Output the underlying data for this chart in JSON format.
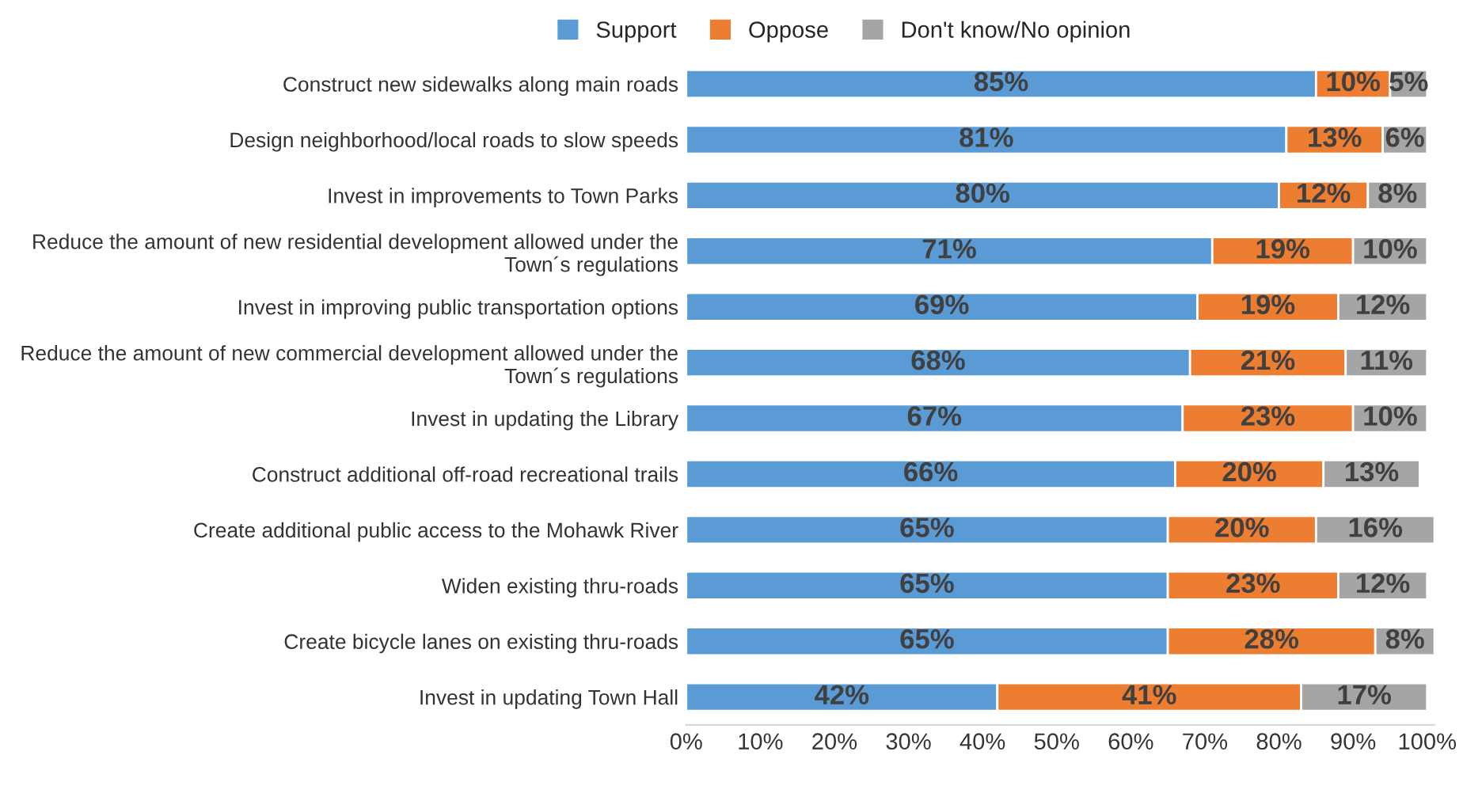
{
  "chart_data": {
    "type": "bar",
    "orientation": "horizontal",
    "stacked": true,
    "legend": "top",
    "categories": [
      "Construct new sidewalks along main roads",
      "Design neighborhood/local roads to slow speeds",
      "Invest in improvements to Town Parks",
      "Reduce the amount of new residential development allowed under the Town´s regulations",
      "Invest in improving public transportation options",
      "Reduce the amount of new commercial development allowed under the Town´s regulations",
      "Invest in updating the Library",
      "Construct additional off-road recreational trails",
      "Create additional public access to the Mohawk River",
      "Widen existing thru-roads",
      "Create bicycle lanes on existing thru-roads",
      "Invest in updating Town Hall"
    ],
    "series": [
      {
        "name": "Support",
        "color": "#5b9bd5",
        "values": [
          85,
          81,
          80,
          71,
          69,
          68,
          67,
          66,
          65,
          65,
          65,
          42
        ],
        "value_labels": [
          "85%",
          "81%",
          "80%",
          "71%",
          "69%",
          "68%",
          "67%",
          "66%",
          "65%",
          "65%",
          "65%",
          "42%"
        ]
      },
      {
        "name": "Oppose",
        "color": "#ed7d31",
        "values": [
          10,
          13,
          12,
          19,
          19,
          21,
          23,
          20,
          20,
          23,
          28,
          41
        ],
        "value_labels": [
          "10%",
          "13%",
          "12%",
          "19%",
          "19%",
          "21%",
          "23%",
          "20%",
          "20%",
          "23%",
          "28%",
          "41%"
        ]
      },
      {
        "name": "Don't know/No opinion",
        "color": "#a5a5a5",
        "values": [
          5,
          6,
          8,
          10,
          12,
          11,
          10,
          13,
          16,
          12,
          8,
          17
        ],
        "value_labels": [
          "5%",
          "6%",
          "8%",
          "10%",
          "12%",
          "11%",
          "10%",
          "13%",
          "16%",
          "12%",
          "8%",
          "17%"
        ]
      }
    ],
    "xlim": [
      0,
      101
    ],
    "xticks": [
      {
        "value": 0,
        "label": "0%"
      },
      {
        "value": 10,
        "label": "10%"
      },
      {
        "value": 20,
        "label": "20%"
      },
      {
        "value": 30,
        "label": "30%"
      },
      {
        "value": 40,
        "label": "40%"
      },
      {
        "value": 50,
        "label": "50%"
      },
      {
        "value": 60,
        "label": "60%"
      },
      {
        "value": 70,
        "label": "70%"
      },
      {
        "value": 80,
        "label": "80%"
      },
      {
        "value": 90,
        "label": "90%"
      },
      {
        "value": 100,
        "label": "100%"
      }
    ]
  }
}
